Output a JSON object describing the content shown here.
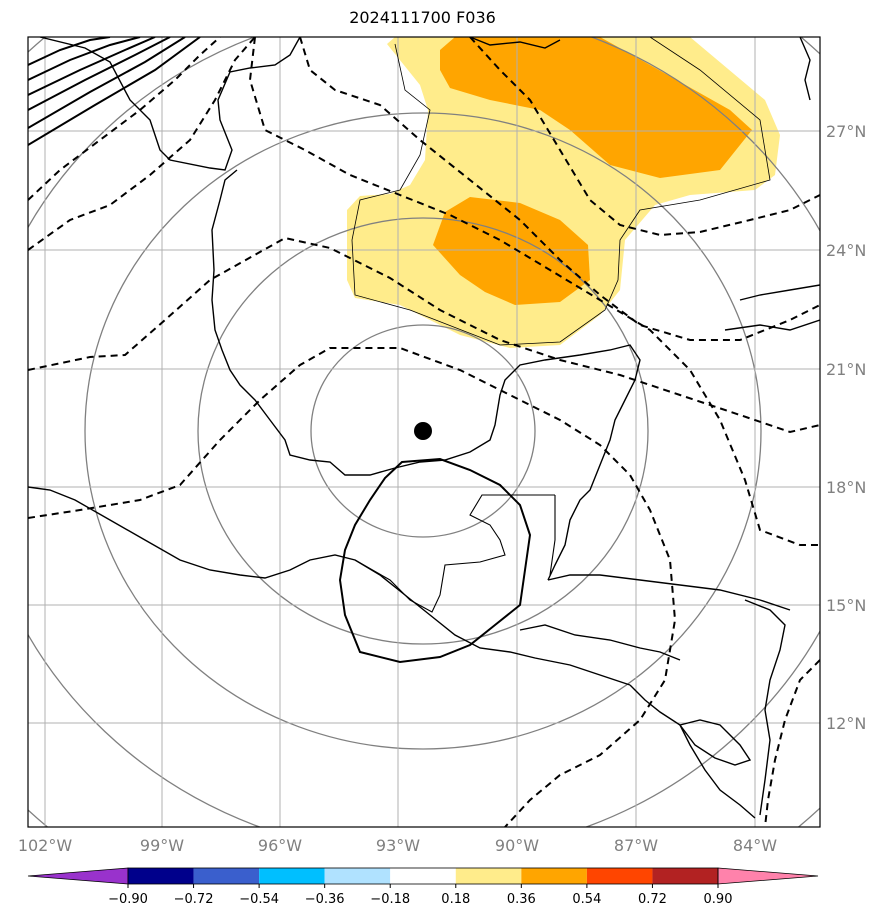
{
  "title": "2024111700 F036",
  "map": {
    "lon_labels": [
      "102°W",
      "99°W",
      "96°W",
      "93°W",
      "90°W",
      "87°W",
      "84°W"
    ],
    "lat_labels": [
      "27°N",
      "24°N",
      "21°N",
      "18°N",
      "15°N",
      "12°N"
    ],
    "gridlines": true,
    "fill_colors": {
      "light_yellow": "#ffec8b",
      "orange": "#ffa500"
    },
    "marker": "storm-center-dot",
    "range_rings_color": "#808080"
  },
  "colorbar": {
    "colors": [
      "#9932cc",
      "#00008b",
      "#3a5fcd",
      "#00bfff",
      "#b0e2ff",
      "#ffffff",
      "#ffec8b",
      "#ffa500",
      "#ff4500",
      "#b22222",
      "#ff82ab"
    ],
    "tick_labels": [
      "−0.90",
      "−0.72",
      "−0.54",
      "−0.36",
      "−0.18",
      "0.18",
      "0.36",
      "0.54",
      "0.72",
      "0.90"
    ],
    "extend": "both"
  }
}
